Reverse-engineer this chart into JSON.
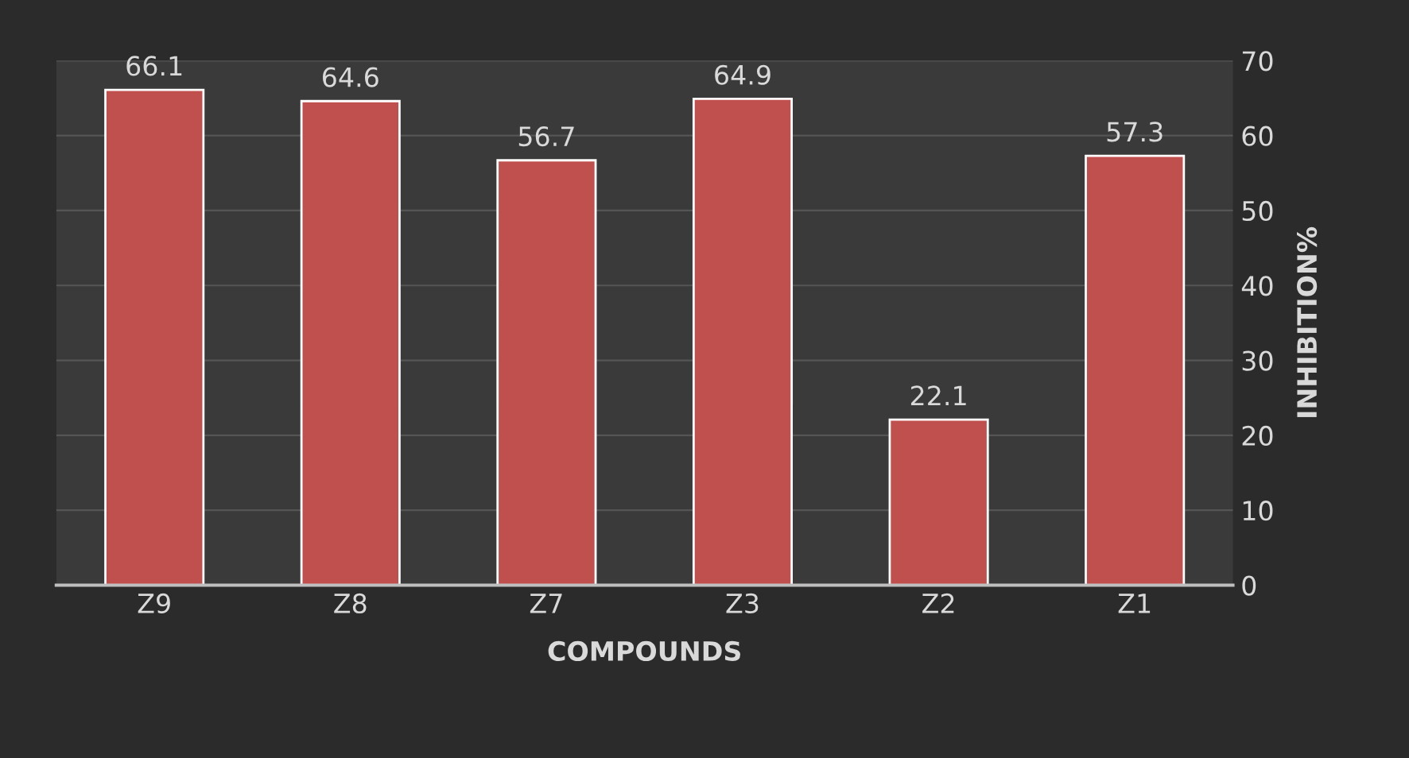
{
  "chart_data": {
    "type": "bar",
    "xlabel": "COMPOUNDS",
    "ylabel": "INHIBITION%",
    "categories": [
      "Z9",
      "Z8",
      "Z7",
      "Z3",
      "Z2",
      "Z1"
    ],
    "values": [
      66.1,
      64.6,
      56.7,
      64.9,
      22.1,
      57.3
    ],
    "color": "#c0504d",
    "ylim": [
      0,
      70
    ],
    "yticks": [
      0,
      10,
      20,
      30,
      40,
      50,
      60,
      70
    ],
    "grid": "y",
    "data_labels": true
  }
}
